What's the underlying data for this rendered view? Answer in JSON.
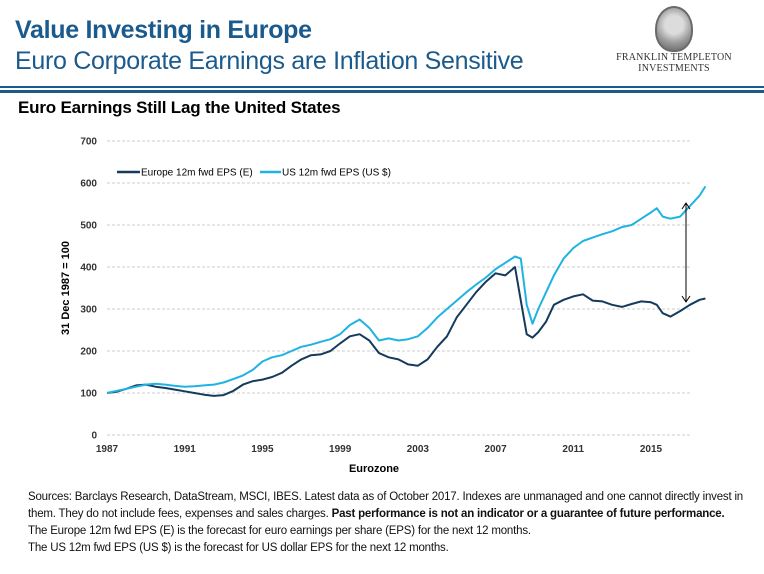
{
  "header": {
    "title": "Value Investing in Europe",
    "subtitle": "Euro Corporate Earnings are Inflation Sensitive",
    "logo_line1": "FRANKLIN TEMPLETON",
    "logo_line2": "INVESTMENTS",
    "brand_color": "#1b5a8c"
  },
  "section_title": "Euro Earnings Still Lag the United States",
  "chart_data": {
    "type": "line",
    "title": "Euro Earnings Still Lag the United States",
    "xlabel": "Eurozone",
    "ylabel": "31 Dec 1987 = 100",
    "xlim": [
      1987,
      2017.8
    ],
    "ylim": [
      0,
      700
    ],
    "x_ticks": [
      "1987",
      "1991",
      "1995",
      "1999",
      "2003",
      "2007",
      "2011",
      "2015"
    ],
    "y_ticks": [
      "0",
      "100",
      "200",
      "300",
      "400",
      "500",
      "600",
      "700"
    ],
    "grid": true,
    "legend_position": "top-left",
    "annotation": "double-headed arrow showing gap between US and Europe at latest date",
    "series": [
      {
        "name": "Europe 12m fwd EPS (E)",
        "color": "#153a5c",
        "x": [
          1987.0,
          1987.5,
          1988.0,
          1988.5,
          1989.0,
          1989.5,
          1990.0,
          1990.5,
          1991.0,
          1991.5,
          1992.0,
          1992.5,
          1993.0,
          1993.5,
          1994.0,
          1994.5,
          1995.0,
          1995.5,
          1996.0,
          1996.5,
          1997.0,
          1997.5,
          1998.0,
          1998.5,
          1999.0,
          1999.5,
          2000.0,
          2000.5,
          2001.0,
          2001.5,
          2002.0,
          2002.5,
          2003.0,
          2003.5,
          2004.0,
          2004.5,
          2005.0,
          2005.5,
          2006.0,
          2006.5,
          2007.0,
          2007.5,
          2008.0,
          2008.3,
          2008.6,
          2008.9,
          2009.2,
          2009.6,
          2010.0,
          2010.5,
          2011.0,
          2011.5,
          2012.0,
          2012.5,
          2013.0,
          2013.5,
          2014.0,
          2014.5,
          2015.0,
          2015.3,
          2015.6,
          2016.0,
          2016.5,
          2017.0,
          2017.5,
          2017.8
        ],
        "values": [
          100,
          103,
          110,
          118,
          120,
          115,
          112,
          108,
          104,
          100,
          96,
          93,
          95,
          105,
          120,
          128,
          132,
          138,
          148,
          165,
          180,
          190,
          192,
          200,
          218,
          235,
          240,
          225,
          195,
          185,
          180,
          168,
          165,
          180,
          210,
          235,
          280,
          310,
          340,
          365,
          385,
          380,
          400,
          320,
          240,
          232,
          245,
          270,
          310,
          322,
          330,
          335,
          320,
          318,
          310,
          305,
          312,
          318,
          316,
          310,
          290,
          282,
          295,
          310,
          322,
          325
        ]
      },
      {
        "name": "US 12m fwd EPS (US $)",
        "color": "#1fb3e3",
        "x": [
          1987.0,
          1987.5,
          1988.0,
          1988.5,
          1989.0,
          1989.5,
          1990.0,
          1990.5,
          1991.0,
          1991.5,
          1992.0,
          1992.5,
          1993.0,
          1993.5,
          1994.0,
          1994.5,
          1995.0,
          1995.5,
          1996.0,
          1996.5,
          1997.0,
          1997.5,
          1998.0,
          1998.5,
          1999.0,
          1999.5,
          2000.0,
          2000.5,
          2001.0,
          2001.5,
          2002.0,
          2002.5,
          2003.0,
          2003.5,
          2004.0,
          2004.5,
          2005.0,
          2005.5,
          2006.0,
          2006.5,
          2007.0,
          2007.5,
          2008.0,
          2008.3,
          2008.6,
          2008.9,
          2009.2,
          2009.6,
          2010.0,
          2010.5,
          2011.0,
          2011.5,
          2012.0,
          2012.5,
          2013.0,
          2013.5,
          2014.0,
          2014.5,
          2015.0,
          2015.3,
          2015.6,
          2016.0,
          2016.5,
          2017.0,
          2017.5,
          2017.8
        ],
        "values": [
          100,
          105,
          110,
          115,
          120,
          122,
          120,
          117,
          115,
          116,
          118,
          120,
          125,
          133,
          142,
          155,
          175,
          185,
          190,
          200,
          210,
          215,
          222,
          228,
          240,
          262,
          275,
          255,
          225,
          230,
          225,
          228,
          235,
          255,
          280,
          300,
          320,
          340,
          358,
          375,
          395,
          410,
          425,
          420,
          310,
          265,
          300,
          340,
          380,
          420,
          445,
          462,
          470,
          478,
          485,
          495,
          500,
          515,
          530,
          540,
          520,
          515,
          520,
          545,
          570,
          592
        ]
      }
    ]
  },
  "footer": {
    "sources_text": "Sources: Barclays Research, DataStream,  MSCI, IBES. Latest data as of October 2017. Indexes are unmanaged and one cannot directly invest in them.  They do not include fees, expenses and sales charges. ",
    "disclaimer_bold": "Past performance is not an indicator or a guarantee of future performance.",
    "note1": "The Europe 12m fwd EPS (E) is the forecast for euro earnings per share (EPS) for the next 12 months.",
    "note2": "The US 12m fwd EPS (US $) is the forecast for US dollar EPS for the next 12 months."
  }
}
